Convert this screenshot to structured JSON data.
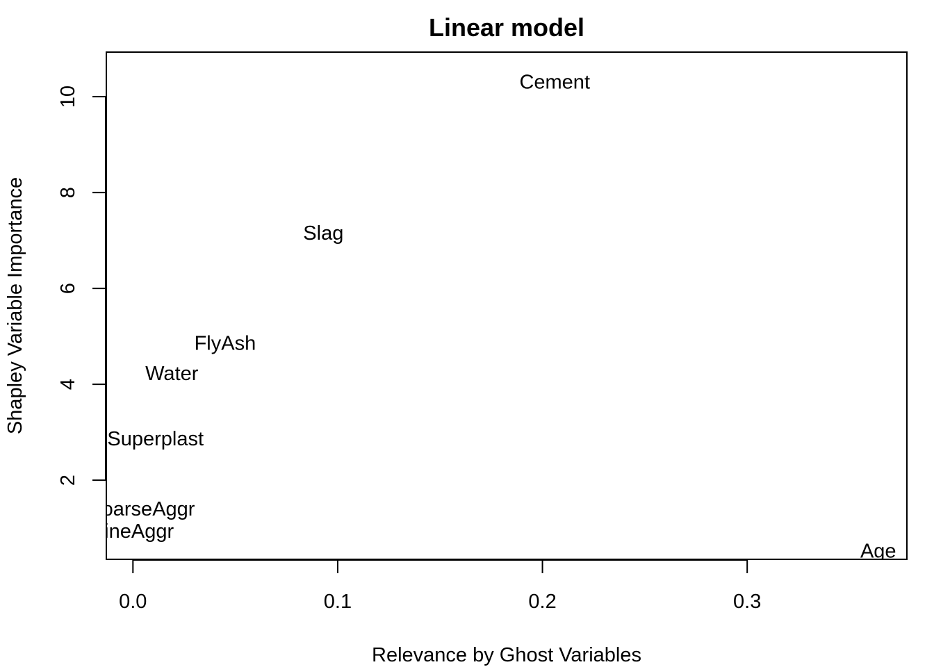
{
  "chart_data": {
    "type": "scatter",
    "title": "Linear model",
    "xlabel": "Relevance by Ghost Variables",
    "ylabel": "Shapley Variable Importance",
    "xlim": [
      -0.013,
      0.378
    ],
    "ylim": [
      0.35,
      10.93
    ],
    "x_ticks": [
      0.0,
      0.1,
      0.2,
      0.3
    ],
    "x_tick_labels": [
      "0.0",
      "0.1",
      "0.2",
      "0.3"
    ],
    "y_ticks": [
      2,
      4,
      6,
      8,
      10
    ],
    "y_tick_labels": [
      "2",
      "4",
      "6",
      "8",
      "10"
    ],
    "grid": false,
    "legend": "none",
    "marker": "text-label",
    "points": [
      {
        "label": "Cement",
        "x": 0.206,
        "y": 10.3
      },
      {
        "label": "Slag",
        "x": 0.093,
        "y": 7.15
      },
      {
        "label": "FlyAsh",
        "x": 0.045,
        "y": 4.85
      },
      {
        "label": "Water",
        "x": 0.019,
        "y": 4.22
      },
      {
        "label": "Superplast",
        "x": 0.011,
        "y": 2.86
      },
      {
        "label": "CoarseAggr",
        "x": 0.004,
        "y": 1.39
      },
      {
        "label": "FineAggr",
        "x": 0.0,
        "y": 0.93
      },
      {
        "label": "Age",
        "x": 0.364,
        "y": 0.52
      }
    ]
  }
}
